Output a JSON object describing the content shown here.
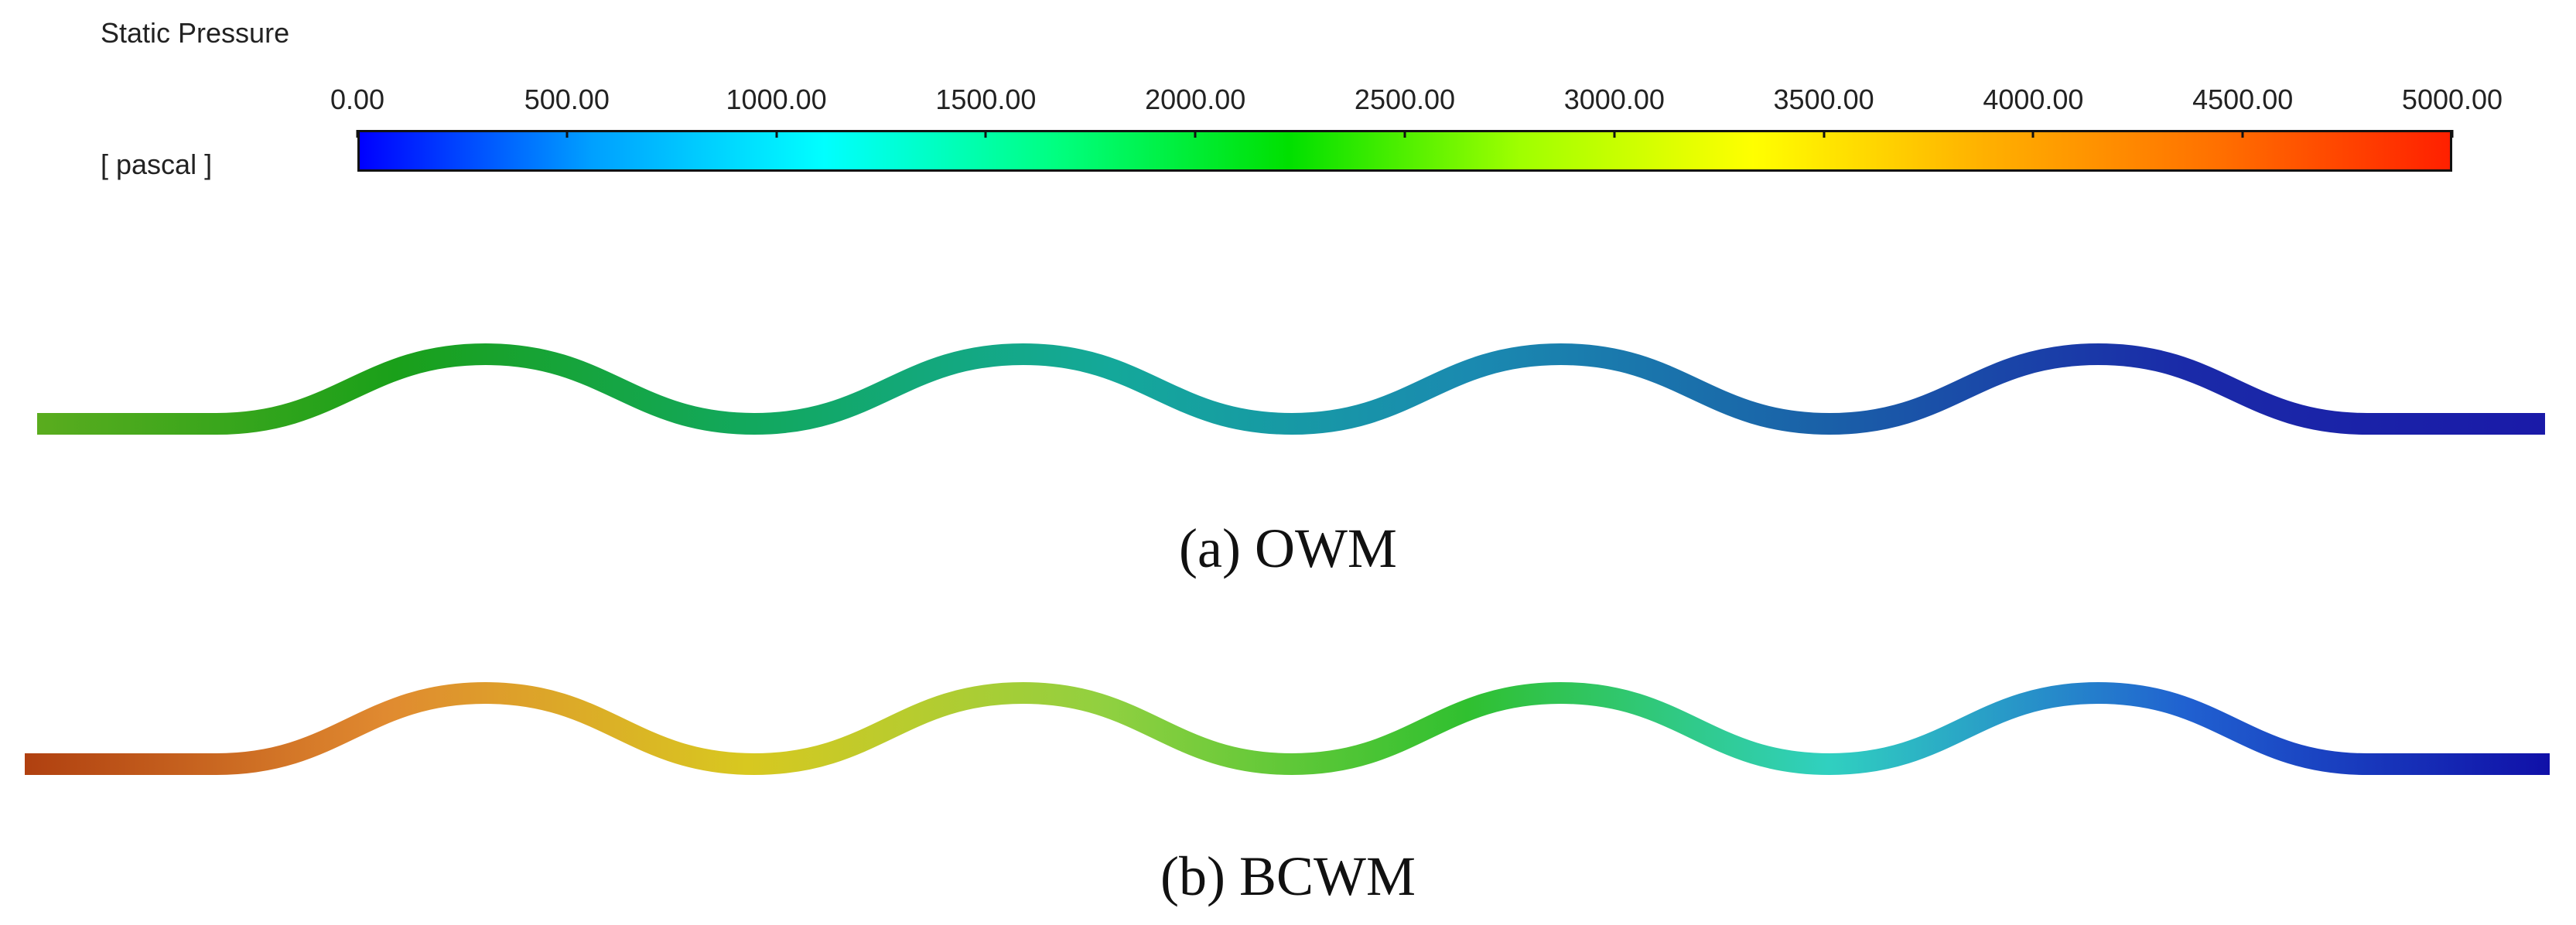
{
  "legend": {
    "title": "Static Pressure",
    "unit": "[ pascal ]",
    "min": 0,
    "max": 5000,
    "ticks": [
      "0.00",
      "500.00",
      "1000.00",
      "1500.00",
      "2000.00",
      "2500.00",
      "3000.00",
      "3500.00",
      "4000.00",
      "4500.00",
      "5000.00"
    ],
    "scale_colors": [
      "#0000ff",
      "#00a0ff",
      "#00ffff",
      "#00ff80",
      "#00e000",
      "#a0ff00",
      "#ffff00",
      "#ffb000",
      "#ff7000",
      "#ff2000"
    ]
  },
  "panels": [
    {
      "caption": "(a) OWM",
      "pressure_stops": [
        2250,
        2000,
        1700,
        1400,
        1050,
        700,
        300,
        100
      ],
      "colors": [
        "#5aac1e",
        "#1aa01a",
        "#12a85e",
        "#14a89a",
        "#1a8ab0",
        "#1a60a8",
        "#1a2aa8",
        "#1a1aa8"
      ]
    },
    {
      "caption": "(b) BCWM",
      "pressure_stops": [
        4500,
        4000,
        3200,
        2600,
        2000,
        1500,
        900,
        200
      ],
      "colors": [
        "#b04010",
        "#e08a30",
        "#d8c820",
        "#90d040",
        "#30c030",
        "#30d0c0",
        "#2060d0",
        "#1010a8"
      ]
    }
  ]
}
